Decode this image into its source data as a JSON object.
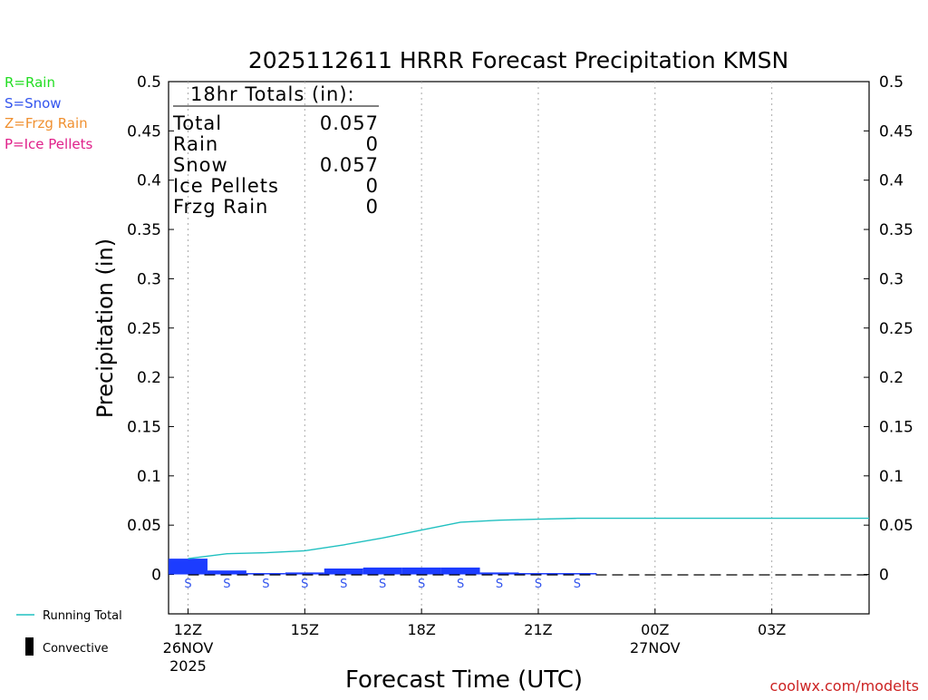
{
  "chart_data": {
    "type": "bar",
    "title": "2025112611 HRRR Forecast Precipitation KMSN",
    "xlabel": "Forecast Time (UTC)",
    "ylabel": "Precipitation (in)",
    "ylim": [
      -0.04,
      0.5
    ],
    "y_ticks": [
      "0",
      "0.05",
      "0.1",
      "0.15",
      "0.2",
      "0.25",
      "0.3",
      "0.35",
      "0.4",
      "0.45",
      "0.5"
    ],
    "x_range_hours": [
      11.5,
      29.5
    ],
    "x_ticks": [
      {
        "hour": 12,
        "label": "12Z",
        "date": "26NOV",
        "year": "2025"
      },
      {
        "hour": 15,
        "label": "15Z",
        "date": "",
        "year": ""
      },
      {
        "hour": 18,
        "label": "18Z",
        "date": "",
        "year": ""
      },
      {
        "hour": 21,
        "label": "21Z",
        "date": "",
        "year": ""
      },
      {
        "hour": 24,
        "label": "00Z",
        "date": "27NOV",
        "year": ""
      },
      {
        "hour": 27,
        "label": "03Z",
        "date": "",
        "year": ""
      }
    ],
    "hours": [
      12,
      13,
      14,
      15,
      16,
      17,
      18,
      19,
      20,
      21,
      22,
      23,
      24,
      25,
      26,
      27,
      28,
      29
    ],
    "hourly_precip": [
      0.016,
      0.004,
      0.001,
      0.002,
      0.006,
      0.007,
      0.007,
      0.007,
      0.002,
      0.001,
      0.0005,
      0,
      0,
      0,
      0,
      0,
      0,
      0
    ],
    "running_total": [
      0.016,
      0.021,
      0.022,
      0.024,
      0.03,
      0.037,
      0.045,
      0.053,
      0.055,
      0.056,
      0.057,
      0.057,
      0.057,
      0.057,
      0.057,
      0.057,
      0.057,
      0.057
    ],
    "ptype_markers": [
      "S",
      "S",
      "S",
      "S",
      "S",
      "S",
      "S",
      "S",
      "S",
      "S",
      "S"
    ],
    "totals_box": {
      "title": "18hr Totals (in):",
      "rows": [
        {
          "label": "Total",
          "value": "0.057"
        },
        {
          "label": "Rain",
          "value": "0"
        },
        {
          "label": "Snow",
          "value": "0.057"
        },
        {
          "label": "Ice Pellets",
          "value": "0"
        },
        {
          "label": "Frzg Rain",
          "value": "0"
        }
      ]
    },
    "colors": {
      "snow_bar": "#1c3cff",
      "running_total": "#20c0c0",
      "rain": "#22dd22",
      "snow": "#3355ee",
      "frzg_rain": "#f09030",
      "ice_pellets": "#e0208a",
      "credit": "#cc2222"
    }
  },
  "type_legend": [
    {
      "text": "R=Rain",
      "color": "#22dd22"
    },
    {
      "text": "S=Snow",
      "color": "#3355ee"
    },
    {
      "text": "Z=Frzg Rain",
      "color": "#f09030"
    },
    {
      "text": "P=Ice Pellets",
      "color": "#e0208a"
    }
  ],
  "series_legend": {
    "running_total": "Running Total",
    "convective": "Convective"
  },
  "credit": "coolwx.com/modelts"
}
